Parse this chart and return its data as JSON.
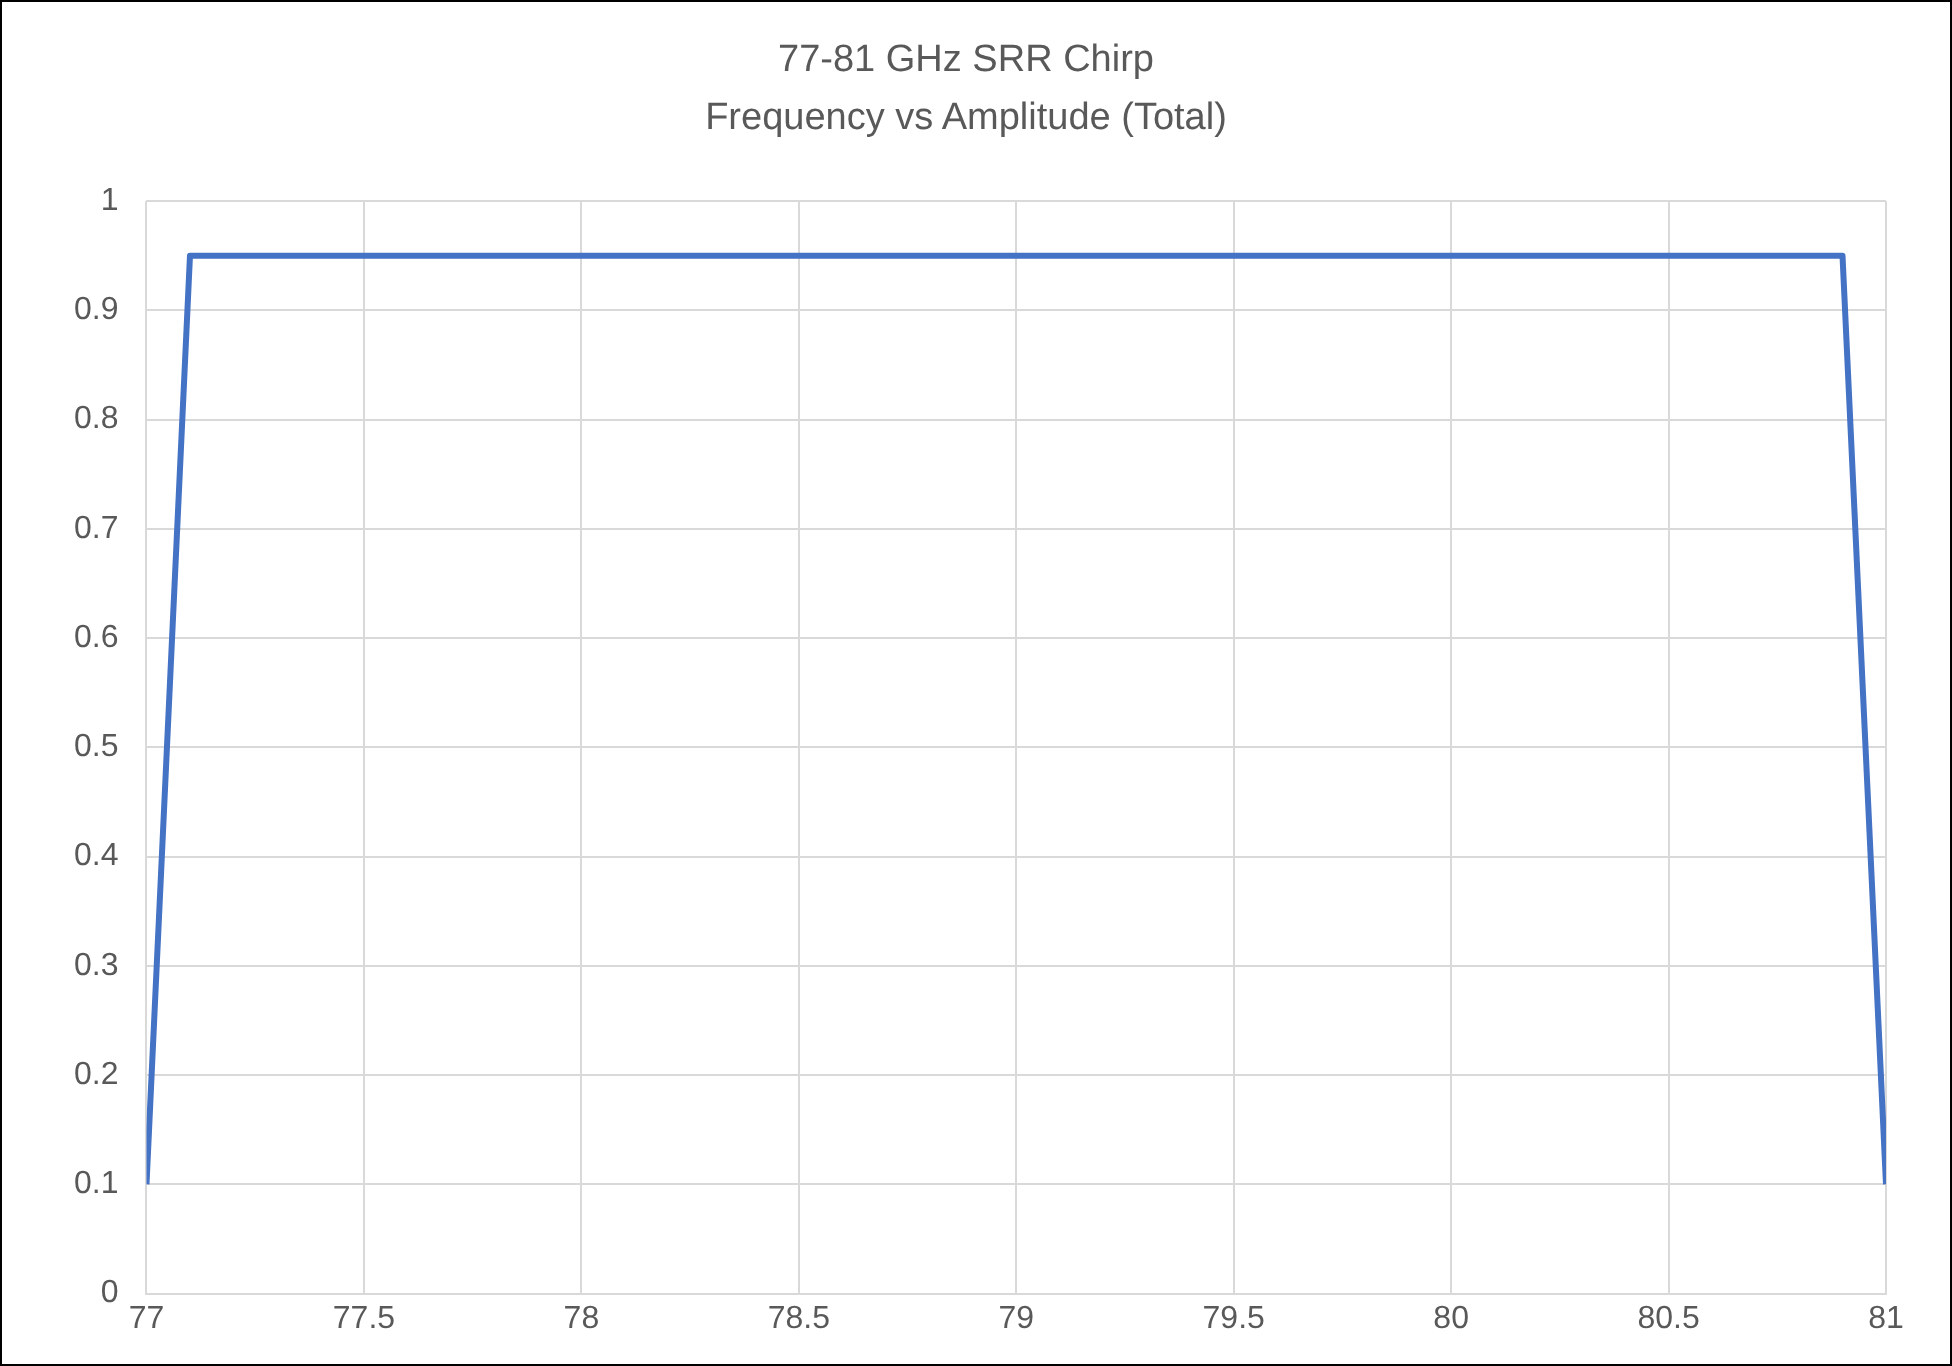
{
  "chart_data": {
    "type": "line",
    "title": "77-81 GHz SRR Chirp",
    "subtitle": "Frequency vs Amplitude (Total)",
    "x": [
      77,
      77.1,
      80.9,
      81
    ],
    "series": [
      {
        "color": "#4472c4",
        "values": [
          0.1,
          0.95,
          0.95,
          0.1
        ]
      }
    ],
    "xlim": [
      77,
      81
    ],
    "xticks": [
      77,
      77.5,
      78,
      78.5,
      79,
      79.5,
      80,
      80.5,
      81
    ],
    "ylim": [
      0,
      1
    ],
    "yticks": [
      0,
      0.1,
      0.2,
      0.3,
      0.4,
      0.5,
      0.6,
      0.7,
      0.8,
      0.9,
      1
    ],
    "grid": true,
    "legend": false,
    "marker": "none",
    "line_style": "solid"
  }
}
